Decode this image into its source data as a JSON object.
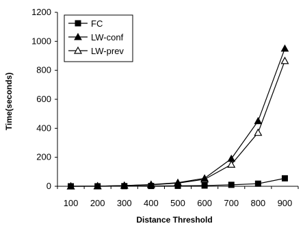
{
  "chart_data": {
    "type": "line",
    "title": "",
    "xlabel": "Distance Threshold",
    "ylabel": "Time(seconds)",
    "x": [
      100,
      200,
      300,
      400,
      500,
      600,
      700,
      800,
      900
    ],
    "ylim": [
      0,
      1200
    ],
    "yticks": [
      0,
      200,
      400,
      600,
      800,
      1000,
      1200
    ],
    "grid": false,
    "legend_position": "top-left",
    "series": [
      {
        "name": "FC",
        "marker": "filled-square",
        "values": [
          0,
          0,
          1,
          2,
          3,
          5,
          10,
          18,
          55
        ]
      },
      {
        "name": "LW-conf",
        "marker": "filled-triangle",
        "values": [
          0,
          1,
          5,
          12,
          25,
          55,
          190,
          450,
          950
        ]
      },
      {
        "name": "LW-prev",
        "marker": "open-triangle",
        "values": [
          0,
          1,
          5,
          10,
          22,
          48,
          150,
          370,
          865
        ]
      }
    ]
  }
}
